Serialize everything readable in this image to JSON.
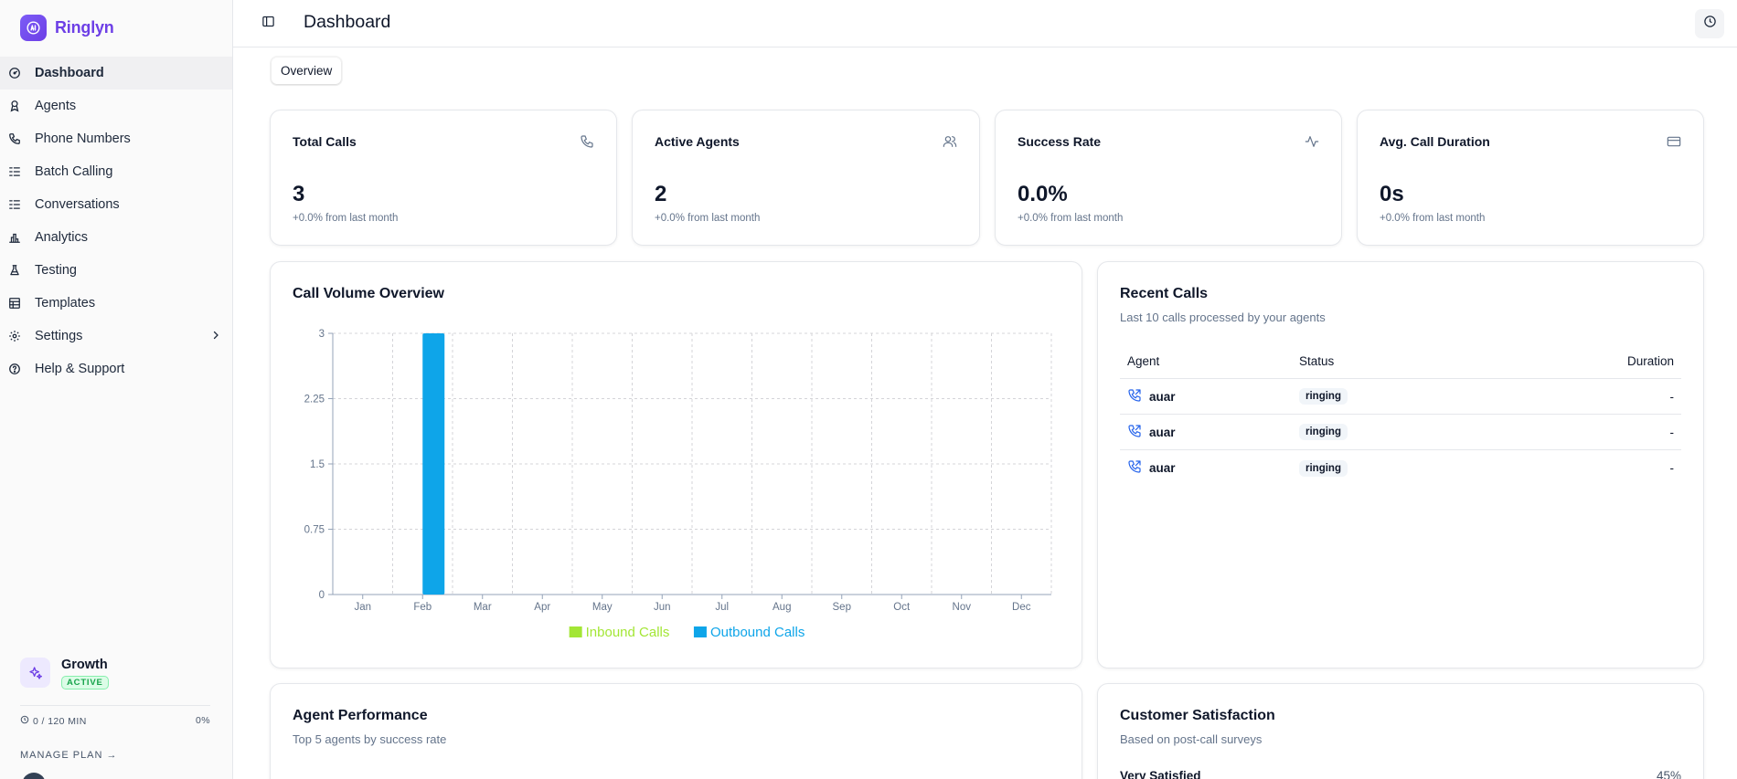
{
  "brand": {
    "name": "Ringlyn",
    "logo_icon": "ai-bot-icon",
    "accent": "#6d3fe6"
  },
  "sidebar": {
    "items": [
      {
        "label": "Dashboard",
        "icon": "gauge-icon",
        "active": true
      },
      {
        "label": "Agents",
        "icon": "agent-icon"
      },
      {
        "label": "Phone Numbers",
        "icon": "phone-icon"
      },
      {
        "label": "Batch Calling",
        "icon": "list-icon"
      },
      {
        "label": "Conversations",
        "icon": "list-icon"
      },
      {
        "label": "Analytics",
        "icon": "bar-chart-icon"
      },
      {
        "label": "Testing",
        "icon": "flask-icon"
      },
      {
        "label": "Templates",
        "icon": "template-icon"
      },
      {
        "label": "Settings",
        "icon": "gear-icon",
        "has_submenu": true
      },
      {
        "label": "Help & Support",
        "icon": "help-circle-icon"
      }
    ],
    "plan": {
      "name": "Growth",
      "badge": "ACTIVE",
      "usage": "0 / 120 MIN",
      "percent": "0%",
      "manage": "MANAGE PLAN →"
    }
  },
  "header": {
    "title": "Dashboard"
  },
  "tabs": [
    {
      "label": "Overview",
      "active": true
    }
  ],
  "stats": [
    {
      "title": "Total Calls",
      "value": "3",
      "sub": "+0.0% from last month",
      "icon": "phone-icon"
    },
    {
      "title": "Active Agents",
      "value": "2",
      "sub": "+0.0% from last month",
      "icon": "users-icon"
    },
    {
      "title": "Success Rate",
      "value": "0.0%",
      "sub": "+0.0% from last month",
      "icon": "activity-icon"
    },
    {
      "title": "Avg. Call Duration",
      "value": "0s",
      "sub": "+0.0% from last month",
      "icon": "credit-card-icon"
    }
  ],
  "call_volume": {
    "title": "Call Volume Overview"
  },
  "chart_data": {
    "type": "bar",
    "title": "Call Volume Overview",
    "categories": [
      "Jan",
      "Feb",
      "Mar",
      "Apr",
      "May",
      "Jun",
      "Jul",
      "Aug",
      "Sep",
      "Oct",
      "Nov",
      "Dec"
    ],
    "series": [
      {
        "name": "Inbound Calls",
        "color": "#a3e635",
        "values": [
          0,
          0,
          0,
          0,
          0,
          0,
          0,
          0,
          0,
          0,
          0,
          0
        ]
      },
      {
        "name": "Outbound Calls",
        "color": "#0ea5e9",
        "values": [
          0,
          3,
          0,
          0,
          0,
          0,
          0,
          0,
          0,
          0,
          0,
          0
        ]
      }
    ],
    "ylim": [
      0,
      3
    ],
    "yticks": [
      "0",
      "0.75",
      "1.5",
      "2.25",
      "3"
    ],
    "grid": true,
    "legend": "bottom"
  },
  "recent_calls": {
    "title": "Recent Calls",
    "subtitle": "Last 10 calls processed by your agents",
    "columns": [
      "Agent",
      "Status",
      "Duration"
    ],
    "rows": [
      {
        "agent": "auar",
        "status": "ringing",
        "duration": "-",
        "icon": "phone-outgoing-icon"
      },
      {
        "agent": "auar",
        "status": "ringing",
        "duration": "-",
        "icon": "phone-outgoing-icon"
      },
      {
        "agent": "auar",
        "status": "ringing",
        "duration": "-",
        "icon": "phone-outgoing-icon"
      }
    ]
  },
  "agent_performance": {
    "title": "Agent Performance",
    "subtitle": "Top 5 agents by success rate"
  },
  "satisfaction": {
    "title": "Customer Satisfaction",
    "subtitle": "Based on post-call surveys",
    "rows": [
      {
        "label": "Very Satisfied",
        "value": "45%"
      }
    ]
  }
}
